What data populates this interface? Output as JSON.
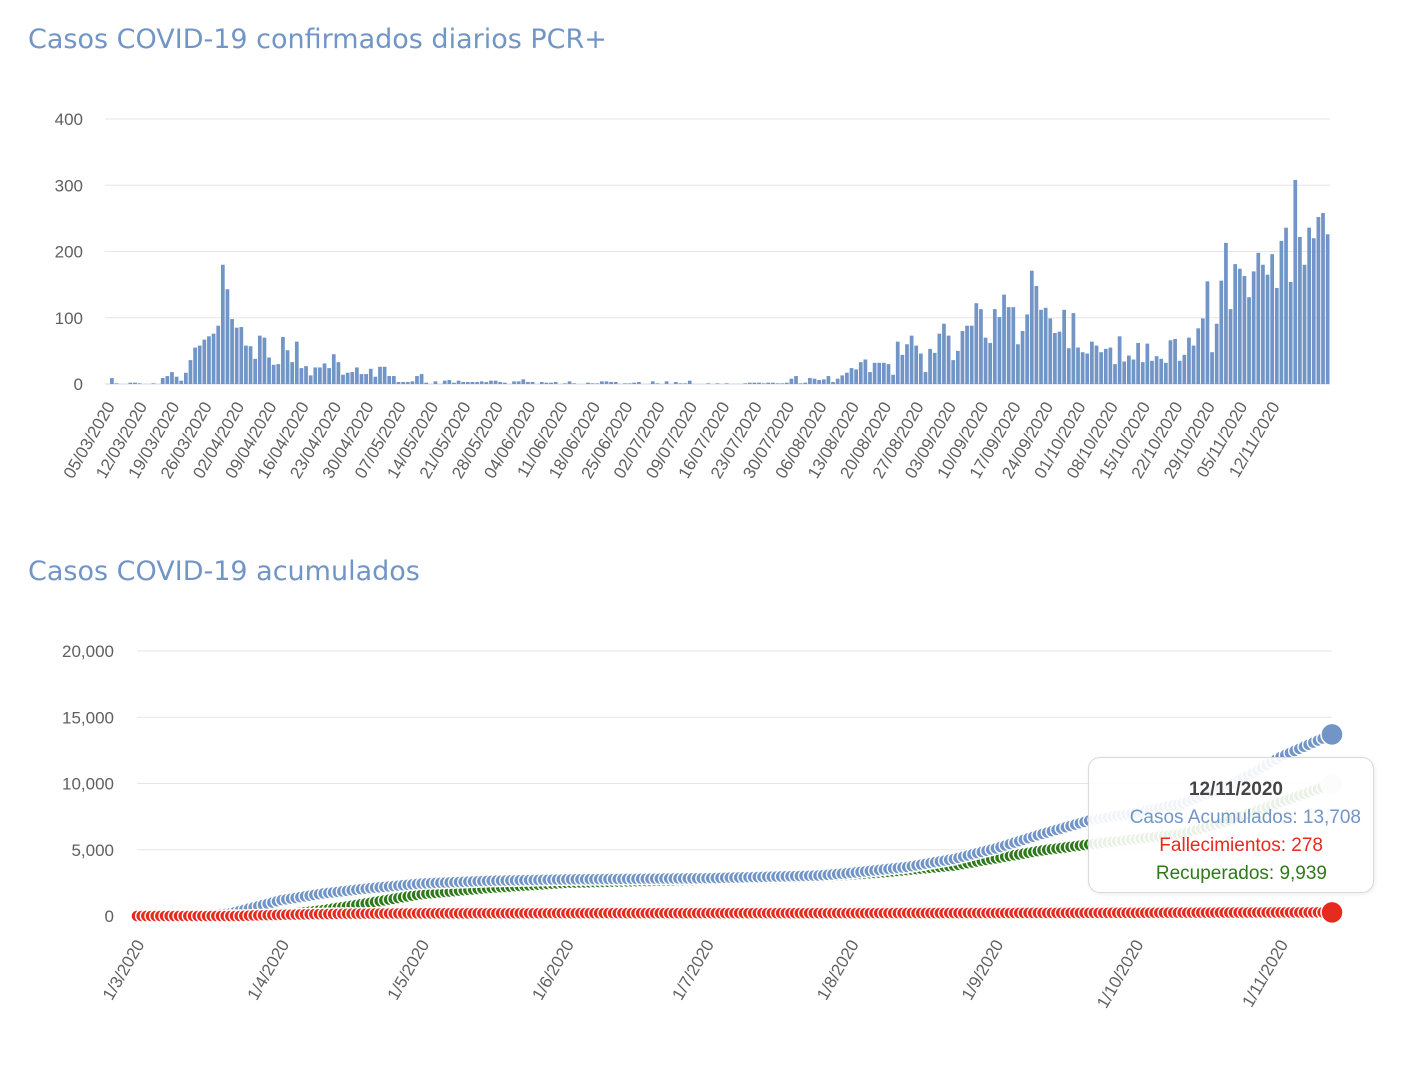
{
  "chart_data": [
    {
      "type": "bar",
      "title": "Casos COVID-19 confirmados diarios PCR+",
      "ylim": [
        0,
        400
      ],
      "yticks": [
        0,
        100,
        200,
        300,
        400
      ],
      "x_tick_labels": [
        "05/03/2020",
        "12/03/2020",
        "19/03/2020",
        "26/03/2020",
        "02/04/2020",
        "09/04/2020",
        "16/04/2020",
        "23/04/2020",
        "30/04/2020",
        "07/05/2020",
        "14/05/2020",
        "21/05/2020",
        "28/05/2020",
        "04/06/2020",
        "11/06/2020",
        "18/06/2020",
        "25/06/2020",
        "02/07/2020",
        "09/07/2020",
        "16/07/2020",
        "23/07/2020",
        "30/07/2020",
        "06/08/2020",
        "13/08/2020",
        "20/08/2020",
        "27/08/2020",
        "03/09/2020",
        "10/09/2020",
        "17/09/2020",
        "24/09/2020",
        "01/10/2020",
        "08/10/2020",
        "15/10/2020",
        "22/10/2020",
        "29/10/2020",
        "05/11/2020",
        "12/11/2020"
      ],
      "start_date": "05/03/2020",
      "end_date": "12/11/2020",
      "color": "#7195c6",
      "values": [
        0,
        9,
        1,
        0,
        0,
        2,
        2,
        1,
        0,
        0,
        1,
        0,
        9,
        12,
        18,
        11,
        5,
        17,
        36,
        55,
        58,
        67,
        72,
        76,
        88,
        180,
        143,
        98,
        85,
        86,
        58,
        57,
        38,
        73,
        70,
        40,
        29,
        30,
        71,
        51,
        33,
        64,
        24,
        27,
        13,
        25,
        25,
        31,
        24,
        45,
        33,
        14,
        17,
        18,
        25,
        15,
        15,
        23,
        11,
        26,
        26,
        12,
        12,
        3,
        3,
        3,
        4,
        12,
        15,
        2,
        0,
        4,
        0,
        5,
        6,
        2,
        5,
        3,
        3,
        3,
        3,
        4,
        3,
        5,
        5,
        3,
        2,
        0,
        4,
        4,
        7,
        3,
        3,
        0,
        3,
        2,
        2,
        3,
        0,
        1,
        4,
        1,
        0,
        0,
        2,
        1,
        1,
        4,
        4,
        3,
        3,
        0,
        1,
        1,
        2,
        3,
        0,
        0,
        4,
        1,
        0,
        4,
        0,
        3,
        1,
        1,
        5,
        0,
        0,
        0,
        1,
        0,
        1,
        0,
        1,
        0,
        0,
        0,
        1,
        2,
        2,
        2,
        1,
        2,
        2,
        1,
        1,
        2,
        8,
        12,
        1,
        2,
        9,
        8,
        6,
        7,
        12,
        3,
        8,
        13,
        17,
        24,
        22,
        33,
        37,
        18,
        32,
        32,
        32,
        30,
        14,
        64,
        44,
        60,
        73,
        58,
        46,
        18,
        53,
        47,
        76,
        91,
        73,
        36,
        50,
        80,
        88,
        88,
        122,
        113,
        70,
        62,
        113,
        101,
        135,
        116,
        116,
        60,
        80,
        105,
        171,
        148,
        112,
        115,
        99,
        77,
        79,
        112,
        54,
        107,
        55,
        48,
        46,
        64,
        58,
        48,
        53,
        55,
        30,
        72,
        34,
        43,
        37,
        62,
        33,
        61,
        35,
        42,
        38,
        32,
        66,
        68,
        35,
        44,
        70,
        58,
        84,
        99,
        155,
        48,
        91,
        156,
        213,
        113,
        181,
        174,
        163,
        131,
        170,
        198,
        180,
        165,
        196,
        145,
        216,
        236,
        154,
        308,
        222,
        180,
        236,
        220,
        252,
        258,
        226
      ]
    },
    {
      "type": "line",
      "title": "Casos COVID-19 acumulados",
      "ylim": [
        0,
        20000
      ],
      "yticks": [
        0,
        5000,
        10000,
        15000,
        20000
      ],
      "x_tick_labels": [
        "1/3/2020",
        "1/4/2020",
        "1/5/2020",
        "1/6/2020",
        "1/7/2020",
        "1/8/2020",
        "1/9/2020",
        "1/10/2020",
        "1/11/2020"
      ],
      "start_date": "01/03/2020",
      "end_date": "12/11/2020",
      "series": [
        {
          "name": "Casos Acumulados",
          "color": "#7195c6",
          "final_value": 13708,
          "anchors": [
            [
              0,
              0
            ],
            [
              14,
              15
            ],
            [
              20,
              200
            ],
            [
              25,
              650
            ],
            [
              31,
              1200
            ],
            [
              40,
              1700
            ],
            [
              50,
              2100
            ],
            [
              61,
              2450
            ],
            [
              75,
              2650
            ],
            [
              92,
              2760
            ],
            [
              122,
              2850
            ],
            [
              146,
              3050
            ],
            [
              153,
              3250
            ],
            [
              165,
              3700
            ],
            [
              175,
              4300
            ],
            [
              184,
              5100
            ],
            [
              194,
              6200
            ],
            [
              204,
              7200
            ],
            [
              214,
              7800
            ],
            [
              224,
              8500
            ],
            [
              235,
              10000
            ],
            [
              245,
              12000
            ],
            [
              256,
              13708
            ]
          ]
        },
        {
          "name": "Fallecimientos",
          "color": "#e52a1e",
          "final_value": 278,
          "anchors": [
            [
              0,
              0
            ],
            [
              22,
              0
            ],
            [
              25,
              40
            ],
            [
              35,
              120
            ],
            [
              45,
              170
            ],
            [
              61,
              200
            ],
            [
              100,
              210
            ],
            [
              153,
              215
            ],
            [
              184,
              225
            ],
            [
              214,
              240
            ],
            [
              256,
              278
            ]
          ]
        },
        {
          "name": "Recuperados",
          "color": "#2e7a1a",
          "final_value": 9939,
          "anchors": [
            [
              0,
              0
            ],
            [
              25,
              0
            ],
            [
              32,
              120
            ],
            [
              40,
              450
            ],
            [
              50,
              1000
            ],
            [
              61,
              1650
            ],
            [
              75,
              2100
            ],
            [
              92,
              2500
            ],
            [
              122,
              2750
            ],
            [
              146,
              2950
            ],
            [
              160,
              3300
            ],
            [
              175,
              3800
            ],
            [
              184,
              4350
            ],
            [
              194,
              4950
            ],
            [
              204,
              5400
            ],
            [
              214,
              5800
            ],
            [
              224,
              6200
            ],
            [
              235,
              7300
            ],
            [
              245,
              8600
            ],
            [
              256,
              9939
            ]
          ]
        }
      ],
      "tooltip": {
        "date": "12/11/2020",
        "line1": "Casos Acumulados: 13,708",
        "line2": "Fallecimientos: 278",
        "line3": "Recuperados: 9,939"
      }
    }
  ]
}
